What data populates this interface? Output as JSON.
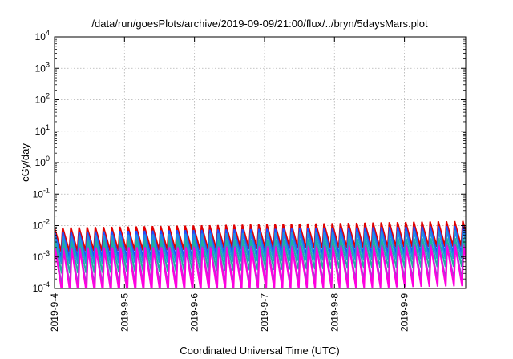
{
  "chart_data": {
    "type": "line",
    "title": "/data/run/goesPlots/archive/2019-09-09/21:00/flux/../bryn/5daysMars.plot",
    "xlabel": "Coordinated Universal Time (UTC)",
    "ylabel": "cGy/day",
    "y_scale": "log",
    "ylim": [
      0.0001,
      10000
    ],
    "y_ticks": [
      {
        "base": "10",
        "exp": "-4"
      },
      {
        "base": "10",
        "exp": "-3"
      },
      {
        "base": "10",
        "exp": "-2"
      },
      {
        "base": "10",
        "exp": "-1"
      },
      {
        "base": "10",
        "exp": "0"
      },
      {
        "base": "10",
        "exp": "1"
      },
      {
        "base": "10",
        "exp": "2"
      },
      {
        "base": "10",
        "exp": "3"
      },
      {
        "base": "10",
        "exp": "4"
      }
    ],
    "xlim": [
      "2019-09-04 00:00",
      "2019-09-09 21:00"
    ],
    "x_ticks": [
      "2019-9-4",
      "2019-9-5",
      "2019-9-6",
      "2019-9-7",
      "2019-9-8",
      "2019-9-9"
    ],
    "grid": true,
    "legend": "none",
    "sawtooth_period_hours": 2.8,
    "series": [
      {
        "color": "#e00000",
        "peak_start": 0.0085,
        "peak_end": 0.014,
        "trough_start": 0.0015,
        "trough_end": 0.0022
      },
      {
        "color": "#1e50ff",
        "peak_start": 0.0062,
        "peak_end": 0.0098,
        "trough_start": 0.0009,
        "trough_end": 0.0013
      },
      {
        "color": "#2090e0",
        "peak_start": 0.0048,
        "peak_end": 0.0072,
        "trough_start": 0.0006,
        "trough_end": 0.0009
      },
      {
        "color": "#20b0a0",
        "peak_start": 0.0032,
        "peak_end": 0.004,
        "trough_start": 0.0003,
        "trough_end": 0.0005
      },
      {
        "color": "#a040d0",
        "peak_start": 0.002,
        "peak_end": 0.0025,
        "trough_start": 0.00012,
        "trough_end": 0.0002
      },
      {
        "color": "#ff00e0",
        "peak_start": 0.0018,
        "peak_end": 0.0022,
        "trough_start": 7e-05,
        "trough_end": 0.00012
      }
    ]
  }
}
